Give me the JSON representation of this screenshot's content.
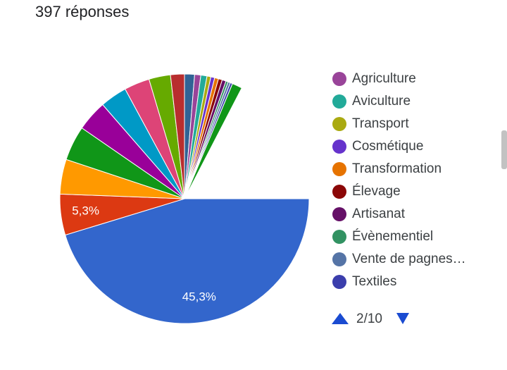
{
  "header": "397 réponses",
  "chart_data": {
    "type": "pie",
    "categories": [
      null,
      null,
      null,
      null,
      null,
      null,
      null,
      null,
      null,
      null,
      "Agriculture",
      "Aviculture",
      "Transport",
      "Cosmétique",
      "Transformation",
      "Élevage",
      "Artisanat",
      "Évènementiel",
      "Vente de pagnes…",
      "Textiles",
      null
    ],
    "values": [
      45.3,
      5.3,
      4.5,
      4.5,
      4.0,
      3.5,
      3.3,
      2.8,
      1.8,
      1.3,
      0.8,
      0.8,
      0.5,
      0.5,
      0.5,
      0.5,
      0.5,
      0.3,
      0.3,
      0.3,
      1.3
    ],
    "value_labels": [
      "45,3%",
      "5,3%",
      null,
      null,
      null,
      null,
      null,
      null,
      null,
      null,
      null,
      null,
      null,
      null,
      null,
      null,
      null,
      null,
      null,
      null,
      null
    ],
    "colors": [
      "#3366cc",
      "#dc3912",
      "#ff9900",
      "#109618",
      "#990099",
      "#0099c6",
      "#dd4477",
      "#66aa00",
      "#b82e2e",
      "#316395",
      "#994499",
      "#22aa99",
      "#aaaa11",
      "#6633cc",
      "#e67300",
      "#8b0707",
      "#651067",
      "#329262",
      "#5574a6",
      "#3b3eac",
      "#109618"
    ],
    "legend_page": "2/10"
  }
}
